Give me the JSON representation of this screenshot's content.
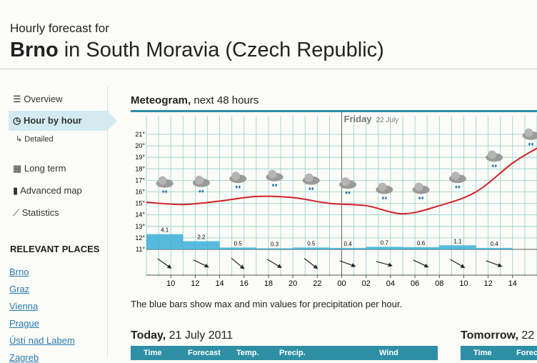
{
  "header": {
    "subtitle": "Hourly forecast for",
    "place": "Brno",
    "place_rest": "in South Moravia (Czech Republic)"
  },
  "nav": {
    "items": [
      "Overview",
      "Hour by hour",
      "Detailed",
      "Long term",
      "Advanced map",
      "Statistics"
    ],
    "places_title": "RELEVANT PLACES",
    "places": [
      "Brno",
      "Graz",
      "Vienna",
      "Prague",
      "Ústí nad Labem",
      "Zagreb"
    ]
  },
  "meteogram": {
    "title": "Meteogram,",
    "title_rest": "next 48 hours",
    "day_label": "Friday",
    "day_date": "22 July",
    "ylim": [
      11,
      21
    ],
    "yticks": [
      {
        "value": 11,
        "label": "11°"
      },
      {
        "value": 12,
        "label": "12°"
      },
      {
        "value": 13,
        "label": "13°"
      },
      {
        "value": 14,
        "label": "14°"
      },
      {
        "value": 15,
        "label": "15°"
      },
      {
        "value": 16,
        "label": "16°"
      },
      {
        "value": 17,
        "label": "17°"
      },
      {
        "value": 18,
        "label": "18°"
      },
      {
        "value": 19,
        "label": "19°"
      },
      {
        "value": 20,
        "label": "20°"
      },
      {
        "value": 21,
        "label": "21°"
      }
    ],
    "xlim": [
      8,
      40
    ],
    "xticks": [
      10,
      12,
      14,
      16,
      18,
      20,
      22,
      {
        "value": 24,
        "label": "00"
      },
      {
        "value": 26,
        "label": "02"
      },
      {
        "value": 28,
        "label": "04"
      },
      {
        "value": 30,
        "label": "06"
      },
      {
        "value": 32,
        "label": "08"
      },
      {
        "value": 34,
        "label": "10"
      },
      {
        "value": 36,
        "label": "12"
      },
      {
        "value": 38,
        "label": "14"
      }
    ],
    "temperature": {
      "color": "#d62028",
      "x": [
        8,
        11,
        14,
        17,
        20,
        23,
        26,
        29,
        32,
        35,
        38,
        40
      ],
      "values": [
        15.1,
        14.9,
        15.2,
        15.6,
        15.5,
        15.0,
        14.8,
        14.1,
        14.8,
        16.0,
        18.5,
        19.8
      ]
    },
    "precipitation": {
      "color": "#3aaed8",
      "x": [
        8,
        11,
        14,
        17,
        20,
        23,
        26,
        29,
        32,
        35
      ],
      "values": [
        4.1,
        2.2,
        0.5,
        0.3,
        0.5,
        0.4,
        0.7,
        0.6,
        1.1,
        0.4
      ]
    }
  },
  "note": "The blue bars show max and min values for precipitation per hour.",
  "today": {
    "title": "Today,",
    "date": "21 July 2011",
    "columns": [
      "Time",
      "Forecast",
      "Temp.",
      "Precip.",
      "Wind"
    ]
  },
  "tomorrow": {
    "title": "Tomorrow,",
    "date": "22",
    "columns": [
      "Time",
      "Forec"
    ]
  }
}
